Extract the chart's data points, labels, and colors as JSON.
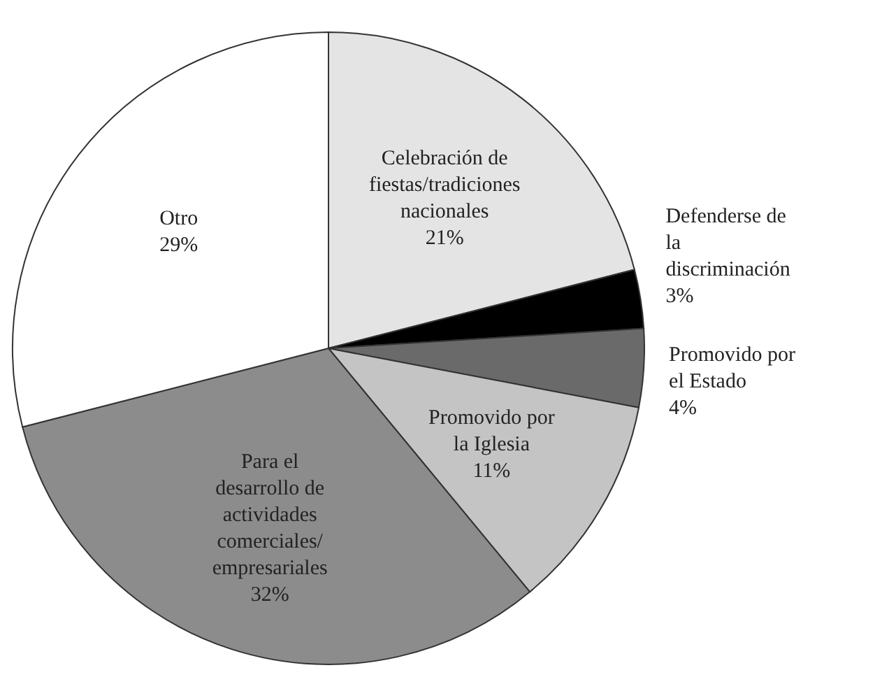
{
  "chart_data": {
    "type": "pie",
    "categories": [
      "Celebración de fiestas/tradiciones nacionales",
      "Defenderse de la discriminación",
      "Promovido por el Estado",
      "Promovido por la Iglesia",
      "Para el desarrollo de actividades comerciales/ empresariales",
      "Otro"
    ],
    "values": [
      21,
      3,
      4,
      11,
      32,
      29
    ],
    "value_labels": [
      "21%",
      "3%",
      "4%",
      "11%",
      "32%",
      "29%"
    ],
    "colors": [
      "#e4e4e4",
      "#000000",
      "#6a6a6a",
      "#c4c4c4",
      "#8c8c8c",
      "#ffffff"
    ]
  }
}
